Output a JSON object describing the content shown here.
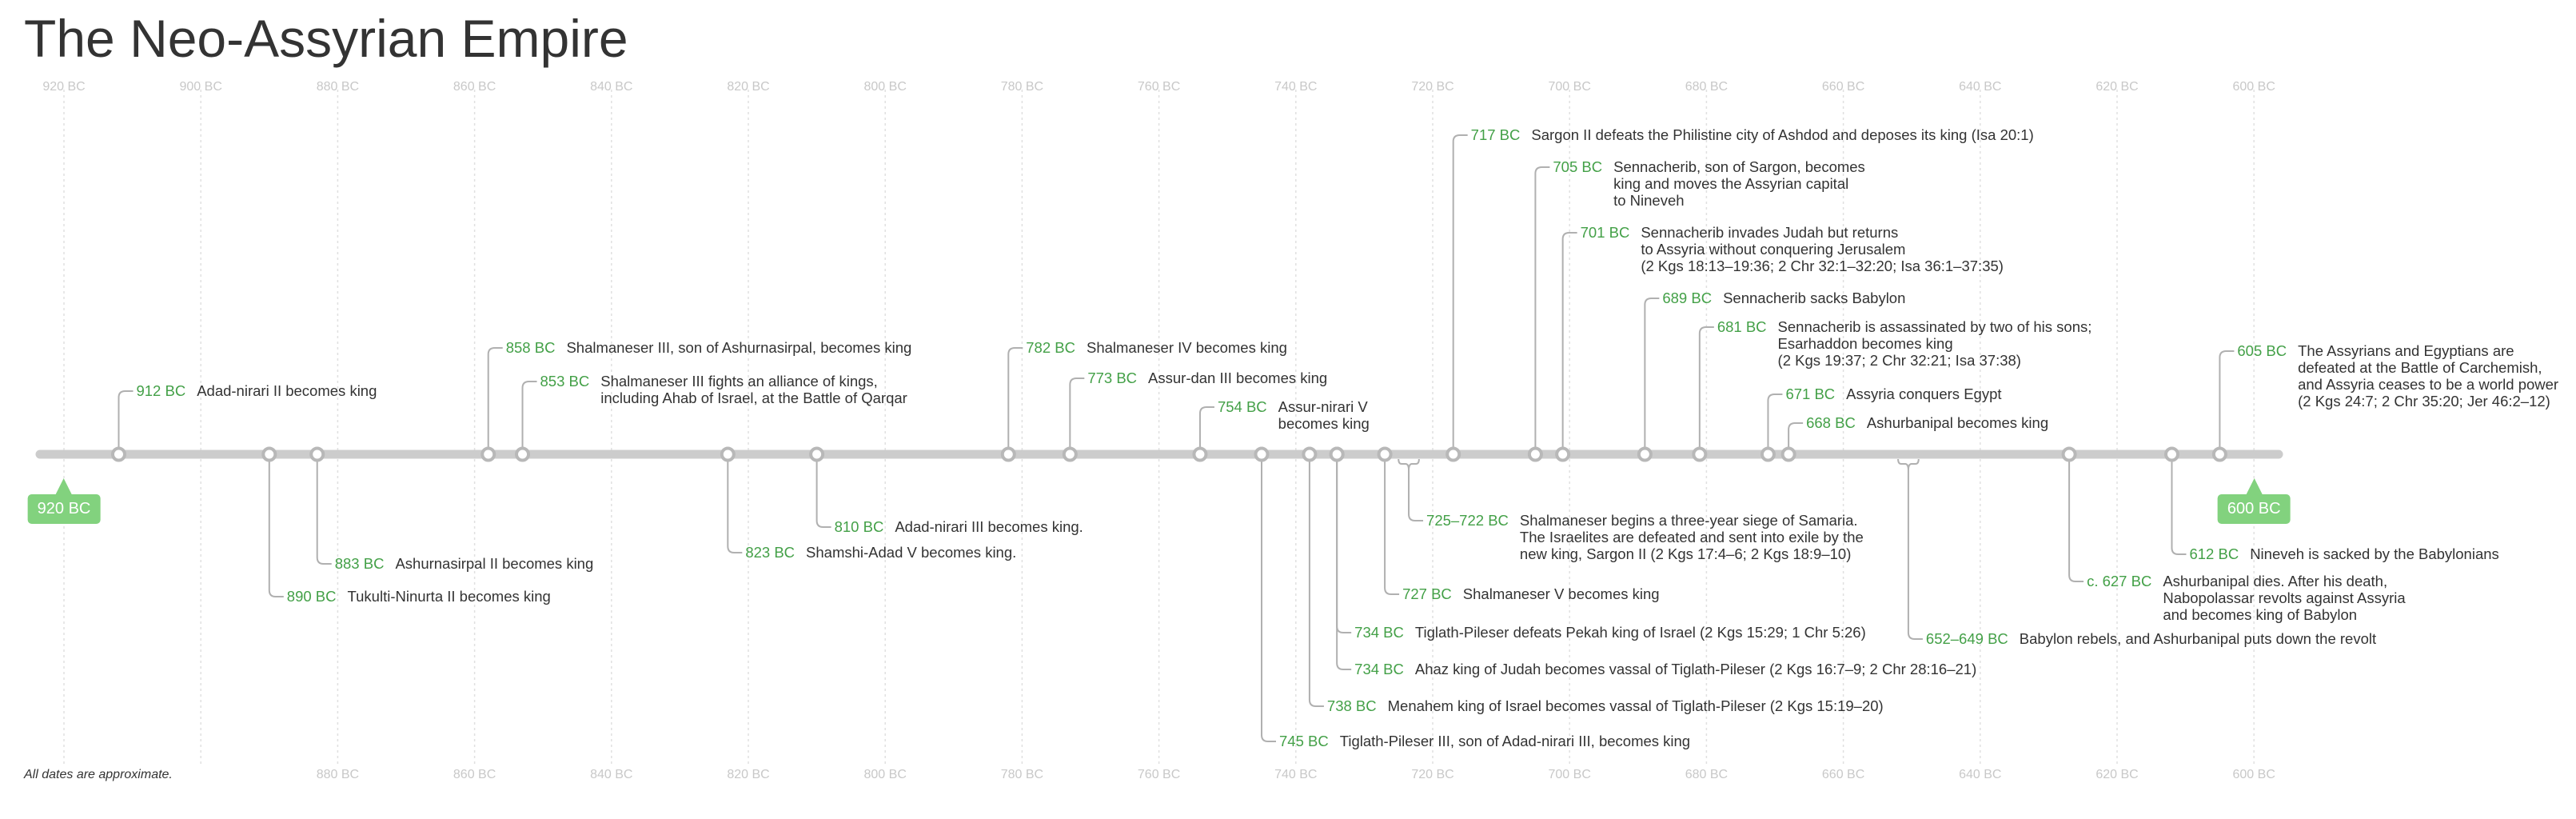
{
  "title": "The Neo-Assyrian Empire",
  "footnote": "All dates are approximate.",
  "colors": {
    "date": "#43a047",
    "badge": "#82d27e",
    "axis": "#cccccc",
    "connector": "#b0b0b0",
    "gridline": "#e0e0e0",
    "tick_label": "#c8c8c8",
    "text": "#333333"
  },
  "axis": {
    "start_label": "920 BC",
    "end_label": "600 BC",
    "top_ticks": [
      "920 BC",
      "900 BC",
      "880 BC",
      "860 BC",
      "840 BC",
      "820 BC",
      "800 BC",
      "780 BC",
      "760 BC",
      "740 BC",
      "720 BC",
      "700 BC",
      "680 BC",
      "660 BC",
      "640 BC",
      "620 BC",
      "600 BC"
    ],
    "bottom_ticks": [
      "880 BC",
      "860 BC",
      "840 BC",
      "820 BC",
      "800 BC",
      "780 BC",
      "760 BC",
      "740 BC",
      "720 BC",
      "700 BC",
      "680 BC",
      "660 BC",
      "640 BC",
      "620 BC",
      "600 BC"
    ]
  },
  "events": [
    {
      "year": 912,
      "date": "912 BC",
      "text": "Adad-nirari II becomes king",
      "side": "above"
    },
    {
      "year": 890,
      "date": "890 BC",
      "text": "Tukulti-Ninurta II becomes king",
      "side": "below"
    },
    {
      "year": 883,
      "date": "883 BC",
      "text": "Ashurnasirpal II becomes king",
      "side": "below"
    },
    {
      "year": 858,
      "date": "858 BC",
      "text": "Shalmaneser III, son of Ashurnasirpal, becomes king",
      "side": "above"
    },
    {
      "year": 853,
      "date": "853 BC",
      "text": "Shalmaneser III fights an alliance of kings,\nincluding Ahab of Israel, at the Battle of Qarqar",
      "side": "above"
    },
    {
      "year": 823,
      "date": "823 BC",
      "text": "Shamshi-Adad V becomes king.",
      "side": "below"
    },
    {
      "year": 810,
      "date": "810 BC",
      "text": "Adad-nirari III becomes king.",
      "side": "below"
    },
    {
      "year": 782,
      "date": "782 BC",
      "text": "Shalmaneser IV becomes king",
      "side": "above"
    },
    {
      "year": 773,
      "date": "773 BC",
      "text": "Assur-dan III becomes king",
      "side": "above"
    },
    {
      "year": 754,
      "date": "754 BC",
      "text": "Assur-nirari V\nbecomes king",
      "side": "above"
    },
    {
      "year": 745,
      "date": "745 BC",
      "text": "Tiglath-Pileser III, son of Adad-nirari III, becomes king",
      "side": "below"
    },
    {
      "year": 738,
      "date": "738 BC",
      "text": "Menahem king of Israel becomes vassal of Tiglath-Pileser (2 Kgs 15:19–20)",
      "side": "below"
    },
    {
      "year": 734,
      "date": "734 BC",
      "text": "Ahaz king of Judah becomes vassal of Tiglath-Pileser (2 Kgs 16:7–9; 2 Chr 28:16–21)",
      "side": "below"
    },
    {
      "year": 734,
      "date": "734 BC",
      "text": "Tiglath-Pileser defeats Pekah king of Israel (2 Kgs 15:29; 1 Chr 5:26)",
      "side": "below"
    },
    {
      "year": 727,
      "date": "727 BC",
      "text": "Shalmaneser V becomes king",
      "side": "below"
    },
    {
      "year": 725,
      "date": "725–722 BC",
      "text": "Shalmaneser begins a three-year siege of Samaria.\nThe Israelites are defeated and sent into exile by the\nnew king, Sargon II (2 Kgs 17:4–6; 2 Kgs 18:9–10)",
      "side": "below",
      "range_end": 722
    },
    {
      "year": 717,
      "date": "717 BC",
      "text": "Sargon II defeats the Philistine city of Ashdod and deposes its king (Isa 20:1)",
      "side": "above"
    },
    {
      "year": 705,
      "date": "705 BC",
      "text": "Sennacherib, son of Sargon, becomes\nking and moves the Assyrian capital\nto Nineveh",
      "side": "above"
    },
    {
      "year": 701,
      "date": "701 BC",
      "text": "Sennacherib invades Judah but returns\nto Assyria without conquering Jerusalem\n(2 Kgs 18:13–19:36; 2 Chr 32:1–32:20; Isa 36:1–37:35)",
      "side": "above"
    },
    {
      "year": 689,
      "date": "689 BC",
      "text": "Sennacherib sacks Babylon",
      "side": "above"
    },
    {
      "year": 681,
      "date": "681 BC",
      "text": "Sennacherib is assassinated by two of his sons;\nEsarhaddon becomes king\n(2 Kgs 19:37; 2 Chr 32:21; Isa 37:38)",
      "side": "above"
    },
    {
      "year": 671,
      "date": "671 BC",
      "text": "Assyria conquers Egypt",
      "side": "above"
    },
    {
      "year": 668,
      "date": "668 BC",
      "text": "Ashurbanipal becomes king",
      "side": "above"
    },
    {
      "year": 652,
      "date": "652–649 BC",
      "text": "Babylon rebels, and Ashurbanipal puts down the revolt",
      "side": "below",
      "range_end": 649
    },
    {
      "year": 627,
      "date": "c. 627 BC",
      "text": "Ashurbanipal dies. After his death,\nNabopolassar revolts against Assyria\nand becomes king of Babylon",
      "side": "below"
    },
    {
      "year": 612,
      "date": "612 BC",
      "text": "Nineveh is sacked by the Babylonians",
      "side": "below"
    },
    {
      "year": 605,
      "date": "605 BC",
      "text": "The Assyrians and Egyptians are\ndefeated at the Battle of Carchemish,\nand Assyria ceases to be a world power\n(2 Kgs 24:7; 2 Chr 35:20; Jer 46:2–12)",
      "side": "above"
    }
  ]
}
